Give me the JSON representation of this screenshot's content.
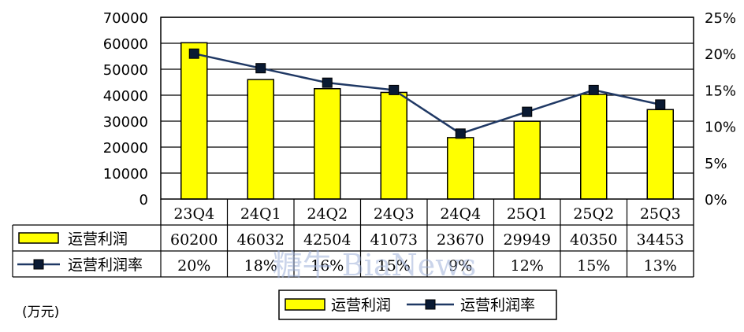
{
  "chart_data": {
    "type": "bar",
    "categories": [
      "23Q4",
      "24Q1",
      "24Q2",
      "24Q3",
      "24Q4",
      "25Q1",
      "25Q2",
      "25Q3"
    ],
    "series": [
      {
        "name": "运营利润",
        "type": "bar",
        "axis": "left",
        "values": [
          60200,
          46032,
          42504,
          41073,
          23670,
          29949,
          40350,
          34453
        ],
        "color": "#ffff00",
        "table_labels": [
          "60200",
          "46032",
          "42504",
          "41073",
          "23670",
          "29949",
          "40350",
          "34453"
        ]
      },
      {
        "name": "运营利润率",
        "type": "line",
        "axis": "right",
        "values": [
          20,
          18,
          16,
          15,
          9,
          12,
          15,
          13
        ],
        "color": "#1f3864",
        "table_labels": [
          "20%",
          "18%",
          "16%",
          "15%",
          "9%",
          "12%",
          "15%",
          "13%"
        ]
      }
    ],
    "ylim_left": [
      0,
      70000
    ],
    "ylim_right": [
      0,
      25
    ],
    "yticks_left": [
      "0",
      "10000",
      "20000",
      "30000",
      "40000",
      "50000",
      "60000",
      "70000"
    ],
    "yticks_right": [
      "0%",
      "5%",
      "10%",
      "15%",
      "20%",
      "25%"
    ],
    "grid": true,
    "data_table": true,
    "legend_position": "bottom"
  },
  "unit_label": "(万元)",
  "watermark": "糖牛 BiaNews"
}
